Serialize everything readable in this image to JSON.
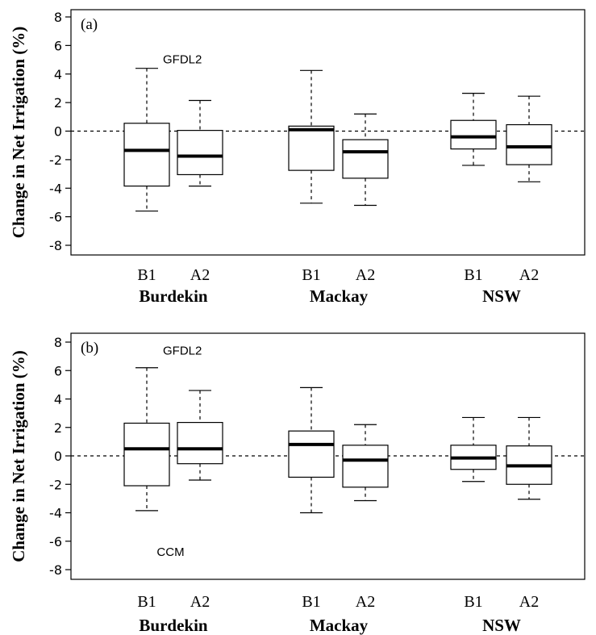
{
  "chart_data": [
    {
      "type": "boxplot",
      "panel_label": "(a)",
      "ylabel": "Change in Net Irrigation (%)",
      "ylim": [
        -8.8,
        8.8
      ],
      "yticks": [
        -8,
        -6,
        -4,
        -2,
        0,
        2,
        4,
        6,
        8
      ],
      "reference_line": 0,
      "annotations": [
        {
          "text": "GFDL2",
          "x": 0.9,
          "y": 5.1
        }
      ],
      "groups": [
        {
          "name": "Burdekin",
          "boxes": [
            {
              "label": "B1",
              "whisker_low": -5.6,
              "q1": -3.85,
              "median": -1.35,
              "q3": 0.55,
              "whisker_high": 4.4
            },
            {
              "label": "A2",
              "whisker_low": -3.85,
              "q1": -3.05,
              "median": -1.75,
              "q3": 0.05,
              "whisker_high": 2.15
            }
          ]
        },
        {
          "name": "Mackay",
          "boxes": [
            {
              "label": "B1",
              "whisker_low": -5.05,
              "q1": -2.75,
              "median": 0.1,
              "q3": 0.35,
              "whisker_high": 4.25
            },
            {
              "label": "A2",
              "whisker_low": -5.2,
              "q1": -3.3,
              "median": -1.45,
              "q3": -0.6,
              "whisker_high": 1.2
            }
          ]
        },
        {
          "name": "NSW",
          "boxes": [
            {
              "label": "B1",
              "whisker_low": -2.4,
              "q1": -1.25,
              "median": -0.4,
              "q3": 0.75,
              "whisker_high": 2.65
            },
            {
              "label": "A2",
              "whisker_low": -3.55,
              "q1": -2.35,
              "median": -1.1,
              "q3": 0.45,
              "whisker_high": 2.45
            }
          ]
        }
      ]
    },
    {
      "type": "boxplot",
      "panel_label": "(b)",
      "ylabel": "Change in Net Irrigation (%)",
      "ylim": [
        -8.8,
        8.8
      ],
      "yticks": [
        -8,
        -6,
        -4,
        -2,
        0,
        2,
        4,
        6,
        8
      ],
      "reference_line": 0,
      "annotations": [
        {
          "text": "GFDL2",
          "x": 0.9,
          "y": 7.45
        },
        {
          "text": "CCM",
          "x": 0.75,
          "y": -6.7
        }
      ],
      "groups": [
        {
          "name": "Burdekin",
          "boxes": [
            {
              "label": "B1",
              "whisker_low": -3.85,
              "q1": -2.1,
              "median": 0.5,
              "q3": 2.3,
              "whisker_high": 6.2
            },
            {
              "label": "A2",
              "whisker_low": -1.7,
              "q1": -0.55,
              "median": 0.5,
              "q3": 2.35,
              "whisker_high": 4.6
            }
          ]
        },
        {
          "name": "Mackay",
          "boxes": [
            {
              "label": "B1",
              "whisker_low": -4.0,
              "q1": -1.5,
              "median": 0.8,
              "q3": 1.75,
              "whisker_high": 4.8
            },
            {
              "label": "A2",
              "whisker_low": -3.15,
              "q1": -2.2,
              "median": -0.3,
              "q3": 0.75,
              "whisker_high": 2.2
            }
          ]
        },
        {
          "name": "NSW",
          "boxes": [
            {
              "label": "B1",
              "whisker_low": -1.8,
              "q1": -0.95,
              "median": -0.15,
              "q3": 0.75,
              "whisker_high": 2.7
            },
            {
              "label": "A2",
              "whisker_low": -3.05,
              "q1": -2.0,
              "median": -0.7,
              "q3": 0.7,
              "whisker_high": 2.7
            }
          ]
        }
      ]
    }
  ]
}
